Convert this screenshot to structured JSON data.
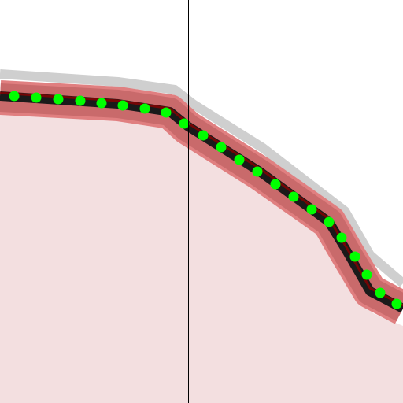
{
  "view": {
    "background_color": "#ffffff",
    "crosshair_color": "#000000"
  },
  "layers": {
    "fill_color": "#f3dfe0",
    "buffer_color": "#c96a6b",
    "buffer_edge_color": "#e07f80",
    "shadow_color": "#cfcfcf",
    "line_color": "#1a1a1a",
    "line_accent_color": "#8b0000",
    "vertex_color": "#00ff00",
    "vertex_count": 23
  }
}
